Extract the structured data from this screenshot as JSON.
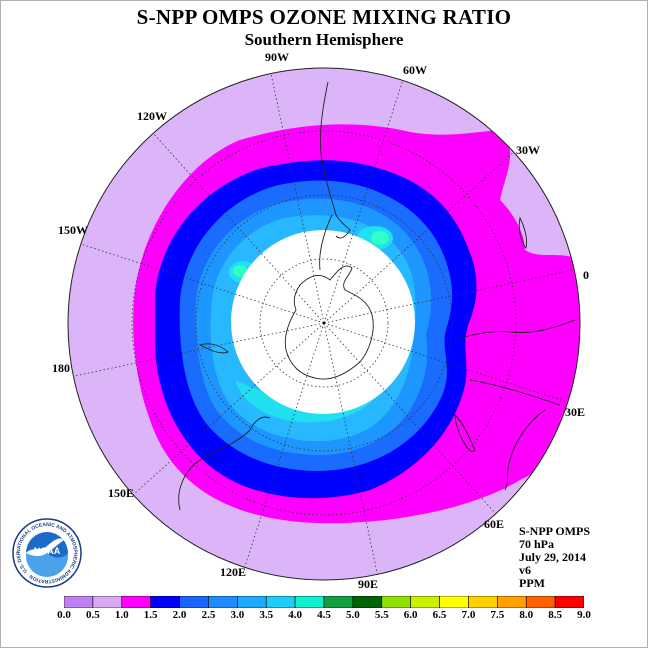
{
  "header": {
    "title": "S-NPP OMPS OZONE MIXING RATIO",
    "subtitle": "Southern Hemisphere"
  },
  "longitude_labels": [
    "90W",
    "60W",
    "30W",
    "0",
    "30E",
    "60E",
    "90E",
    "120E",
    "150E",
    "180",
    "150W",
    "120W"
  ],
  "info_block": {
    "instrument": "S-NPP OMPS",
    "pressure": "70 hPa",
    "date": "July 29, 2014",
    "version": "v6",
    "units": "PPM"
  },
  "logo": {
    "text": "NOAA",
    "ring_text": "NATIONAL OCEANIC AND ATMOSPHERIC ADMINISTRATION · U.S. DEPARTMENT OF COMMERCE"
  },
  "colorbar": {
    "ticks": [
      "0.0",
      "0.5",
      "1.0",
      "1.5",
      "2.0",
      "2.5",
      "3.0",
      "3.5",
      "4.0",
      "4.5",
      "5.0",
      "5.5",
      "6.0",
      "6.5",
      "7.0",
      "7.5",
      "8.0",
      "8.5",
      "9.0"
    ],
    "colors": [
      "#c080f0",
      "#d8aaf4",
      "#ff00ff",
      "#0000ff",
      "#1a64ff",
      "#1e8cff",
      "#1eaaff",
      "#1ecdf5",
      "#10f0d0",
      "#10a040",
      "#006400",
      "#90e000",
      "#c8f000",
      "#ffff00",
      "#ffd000",
      "#ffa000",
      "#ff6000",
      "#ff0000",
      "#a06040"
    ]
  },
  "map_colors": {
    "outer": "#dcb4f8",
    "band_1_0": "#ff00ff",
    "band_1_5": "#0000ff",
    "band_2_0": "#1a6cff",
    "band_2_5": "#1e96ff",
    "band_3_0": "#28b8ff",
    "band_3_5": "#20e0f0",
    "band_4_0": "#30ffc8",
    "no_data": "#ffffff"
  }
}
